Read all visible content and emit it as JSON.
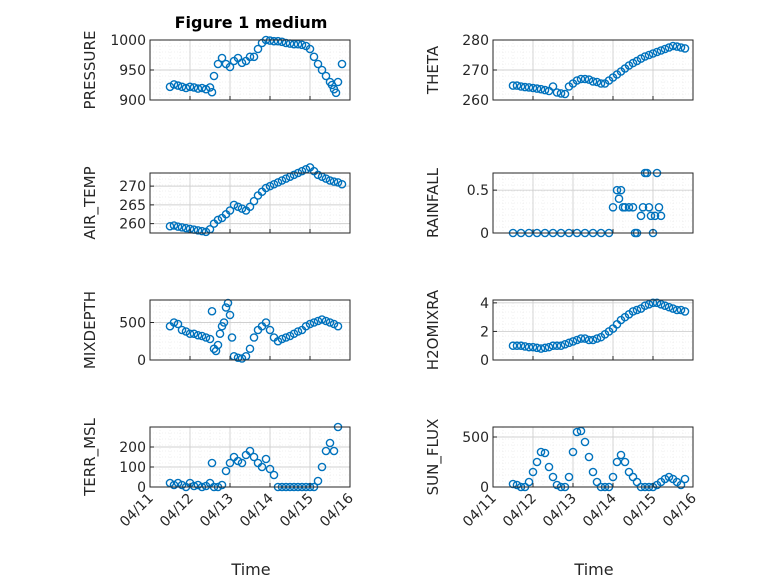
{
  "title": "Figure 1 medium",
  "xlabel": "Time",
  "x_tick_labels": [
    "04/11",
    "04/12",
    "04/13",
    "04/14",
    "04/15",
    "04/16"
  ],
  "marker_color": "#0072BD",
  "chart_data": [
    {
      "type": "scatter",
      "ylabel": "PRESSURE",
      "ylim": [
        900,
        1000
      ],
      "yticks": [
        900,
        950,
        1000
      ],
      "grid": true,
      "minor_grid": true,
      "x": [
        0.5,
        0.6,
        0.7,
        0.8,
        0.9,
        1.0,
        1.1,
        1.2,
        1.3,
        1.4,
        1.5,
        1.55,
        1.6,
        1.7,
        1.8,
        1.9,
        2.0,
        2.1,
        2.2,
        2.3,
        2.4,
        2.5,
        2.6,
        2.7,
        2.8,
        2.9,
        3.0,
        3.1,
        3.2,
        3.3,
        3.4,
        3.5,
        3.6,
        3.7,
        3.8,
        3.9,
        4.0,
        4.1,
        4.2,
        4.3,
        4.4,
        4.5,
        4.55,
        4.6,
        4.65,
        4.7,
        4.8
      ],
      "y": [
        922,
        926,
        924,
        922,
        920,
        922,
        921,
        919,
        920,
        918,
        921,
        913,
        940,
        960,
        970,
        960,
        955,
        965,
        970,
        962,
        965,
        972,
        972,
        985,
        995,
        1000,
        999,
        998,
        998,
        997,
        995,
        994,
        993,
        993,
        992,
        990,
        985,
        972,
        960,
        950,
        940,
        930,
        925,
        918,
        912,
        930,
        960
      ]
    },
    {
      "type": "scatter",
      "ylabel": "THETA",
      "ylim": [
        260,
        280
      ],
      "yticks": [
        260,
        270,
        280
      ],
      "grid": true,
      "minor_grid": true,
      "x": [
        0.5,
        0.6,
        0.7,
        0.8,
        0.9,
        1.0,
        1.1,
        1.2,
        1.3,
        1.4,
        1.5,
        1.6,
        1.7,
        1.8,
        1.9,
        2.0,
        2.1,
        2.2,
        2.3,
        2.4,
        2.5,
        2.6,
        2.7,
        2.8,
        2.9,
        3.0,
        3.1,
        3.2,
        3.3,
        3.4,
        3.5,
        3.6,
        3.7,
        3.8,
        3.9,
        4.0,
        4.1,
        4.2,
        4.3,
        4.4,
        4.5,
        4.6,
        4.7,
        4.8
      ],
      "y": [
        264.8,
        264.8,
        264.5,
        264.3,
        264.2,
        264.0,
        263.8,
        263.6,
        263.3,
        263.0,
        264.5,
        262.5,
        262.2,
        262.0,
        264.5,
        265.5,
        266.5,
        267.0,
        267.0,
        266.8,
        266.2,
        266.0,
        265.5,
        265.5,
        266.5,
        267.5,
        268.5,
        269.5,
        270.5,
        271.5,
        272.3,
        273.0,
        273.8,
        274.5,
        275.0,
        275.5,
        276.0,
        276.5,
        277.0,
        277.5,
        278.0,
        277.8,
        277.5,
        277.2
      ]
    },
    {
      "type": "scatter",
      "ylabel": "AIR_TEMP",
      "ylim": [
        257.5,
        273.5
      ],
      "yticks": [
        260,
        265,
        270
      ],
      "grid": true,
      "minor_grid": true,
      "x": [
        0.5,
        0.6,
        0.7,
        0.8,
        0.9,
        1.0,
        1.1,
        1.2,
        1.3,
        1.4,
        1.5,
        1.6,
        1.7,
        1.8,
        1.9,
        2.0,
        2.1,
        2.2,
        2.3,
        2.4,
        2.5,
        2.6,
        2.7,
        2.8,
        2.9,
        3.0,
        3.1,
        3.2,
        3.3,
        3.4,
        3.5,
        3.6,
        3.7,
        3.8,
        3.9,
        4.0,
        4.1,
        4.2,
        4.3,
        4.4,
        4.5,
        4.6,
        4.7,
        4.8
      ],
      "y": [
        259.3,
        259.5,
        259.2,
        259.0,
        258.8,
        258.6,
        258.4,
        258.2,
        258.0,
        257.8,
        258.5,
        260.0,
        261.0,
        261.5,
        262.5,
        263.5,
        265.0,
        264.5,
        264.0,
        263.5,
        264.5,
        266.0,
        267.5,
        268.5,
        269.5,
        270.0,
        270.5,
        271.0,
        271.5,
        272.0,
        272.5,
        273.0,
        273.5,
        274.0,
        274.5,
        275.0,
        274.0,
        273.0,
        272.5,
        272.0,
        271.5,
        271.2,
        271.0,
        270.5
      ]
    },
    {
      "type": "scatter",
      "ylabel": "RAINFALL",
      "ylim": [
        0,
        0.7
      ],
      "yticks": [
        0,
        0.5
      ],
      "grid": true,
      "minor_grid": true,
      "x": [
        0.5,
        0.7,
        0.9,
        1.1,
        1.3,
        1.5,
        1.7,
        1.9,
        2.1,
        2.3,
        2.5,
        2.7,
        2.9,
        3.0,
        3.1,
        3.15,
        3.2,
        3.25,
        3.3,
        3.4,
        3.5,
        3.55,
        3.6,
        3.7,
        3.75,
        3.8,
        3.85,
        3.9,
        3.95,
        4.0,
        4.05,
        4.1,
        4.15,
        4.2
      ],
      "y": [
        0,
        0,
        0,
        0,
        0,
        0,
        0,
        0,
        0,
        0,
        0,
        0,
        0,
        0.3,
        0.5,
        0.4,
        0.5,
        0.3,
        0.3,
        0.3,
        0.3,
        0,
        0,
        0.2,
        0.3,
        0.7,
        0.7,
        0.3,
        0.2,
        0,
        0.2,
        0.7,
        0.3,
        0.2
      ]
    },
    {
      "type": "scatter",
      "ylabel": "MIXDEPTH",
      "ylim": [
        0,
        800
      ],
      "yticks": [
        0,
        500
      ],
      "grid": true,
      "minor_grid": true,
      "x": [
        0.5,
        0.6,
        0.7,
        0.8,
        0.9,
        1.0,
        1.1,
        1.2,
        1.3,
        1.4,
        1.5,
        1.55,
        1.6,
        1.65,
        1.7,
        1.75,
        1.8,
        1.85,
        1.9,
        1.95,
        2.0,
        2.05,
        2.1,
        2.2,
        2.3,
        2.4,
        2.5,
        2.6,
        2.7,
        2.8,
        2.9,
        3.0,
        3.1,
        3.2,
        3.3,
        3.4,
        3.5,
        3.6,
        3.7,
        3.8,
        3.9,
        4.0,
        4.1,
        4.2,
        4.3,
        4.4,
        4.5,
        4.6,
        4.7
      ],
      "y": [
        450,
        500,
        480,
        400,
        380,
        350,
        350,
        330,
        320,
        300,
        280,
        650,
        150,
        120,
        200,
        350,
        450,
        500,
        700,
        760,
        600,
        300,
        50,
        30,
        20,
        50,
        150,
        300,
        400,
        450,
        500,
        400,
        300,
        250,
        280,
        300,
        320,
        350,
        380,
        400,
        450,
        480,
        500,
        520,
        540,
        520,
        500,
        480,
        450
      ]
    },
    {
      "type": "scatter",
      "ylabel": "H2OMIXRA",
      "ylim": [
        0,
        4.2
      ],
      "yticks": [
        0,
        2,
        4
      ],
      "grid": true,
      "minor_grid": true,
      "x": [
        0.5,
        0.6,
        0.7,
        0.8,
        0.9,
        1.0,
        1.1,
        1.2,
        1.3,
        1.4,
        1.5,
        1.6,
        1.7,
        1.8,
        1.9,
        2.0,
        2.1,
        2.2,
        2.3,
        2.4,
        2.5,
        2.6,
        2.7,
        2.8,
        2.9,
        3.0,
        3.1,
        3.2,
        3.3,
        3.4,
        3.5,
        3.6,
        3.7,
        3.8,
        3.9,
        4.0,
        4.1,
        4.2,
        4.3,
        4.4,
        4.5,
        4.6,
        4.7,
        4.8
      ],
      "y": [
        1.0,
        1.0,
        1.0,
        0.95,
        0.9,
        0.9,
        0.85,
        0.8,
        0.85,
        0.9,
        1.0,
        1.0,
        1.0,
        1.1,
        1.2,
        1.3,
        1.4,
        1.5,
        1.5,
        1.4,
        1.4,
        1.5,
        1.6,
        1.8,
        2.0,
        2.2,
        2.5,
        2.8,
        3.0,
        3.2,
        3.4,
        3.5,
        3.6,
        3.8,
        3.9,
        4.0,
        4.0,
        3.9,
        3.8,
        3.7,
        3.6,
        3.5,
        3.5,
        3.4
      ]
    },
    {
      "type": "scatter",
      "ylabel": "TERR_MSL",
      "ylim": [
        0,
        300
      ],
      "yticks": [
        0,
        100,
        200
      ],
      "grid": true,
      "minor_grid": true,
      "x": [
        0.5,
        0.6,
        0.7,
        0.8,
        0.9,
        1.0,
        1.1,
        1.2,
        1.3,
        1.4,
        1.5,
        1.55,
        1.6,
        1.7,
        1.8,
        1.9,
        2.0,
        2.1,
        2.2,
        2.3,
        2.4,
        2.5,
        2.6,
        2.7,
        2.8,
        2.9,
        3.0,
        3.1,
        3.2,
        3.3,
        3.4,
        3.5,
        3.6,
        3.7,
        3.8,
        3.9,
        4.0,
        4.1,
        4.2,
        4.3,
        4.4,
        4.5,
        4.6,
        4.7
      ],
      "y": [
        20,
        10,
        20,
        10,
        0,
        20,
        5,
        10,
        0,
        5,
        20,
        120,
        0,
        0,
        10,
        80,
        120,
        150,
        130,
        120,
        160,
        180,
        150,
        120,
        100,
        140,
        90,
        60,
        0,
        0,
        0,
        0,
        0,
        0,
        0,
        0,
        0,
        0,
        30,
        100,
        180,
        220,
        180,
        300
      ]
    },
    {
      "type": "scatter",
      "ylabel": "SUN_FLUX",
      "ylim": [
        0,
        600
      ],
      "yticks": [
        0,
        500
      ],
      "grid": true,
      "minor_grid": true,
      "x": [
        0.5,
        0.6,
        0.7,
        0.8,
        0.9,
        1.0,
        1.1,
        1.2,
        1.3,
        1.4,
        1.5,
        1.6,
        1.7,
        1.8,
        1.9,
        2.0,
        2.1,
        2.2,
        2.3,
        2.4,
        2.5,
        2.6,
        2.7,
        2.8,
        2.9,
        3.0,
        3.1,
        3.2,
        3.3,
        3.4,
        3.5,
        3.6,
        3.7,
        3.8,
        3.9,
        4.0,
        4.1,
        4.2,
        4.3,
        4.4,
        4.5,
        4.6,
        4.7,
        4.8
      ],
      "y": [
        30,
        20,
        0,
        0,
        50,
        150,
        250,
        350,
        340,
        200,
        100,
        20,
        0,
        0,
        100,
        350,
        550,
        560,
        450,
        300,
        150,
        50,
        0,
        0,
        0,
        100,
        250,
        320,
        250,
        150,
        100,
        50,
        0,
        0,
        0,
        0,
        20,
        50,
        80,
        100,
        80,
        50,
        20,
        80
      ]
    }
  ]
}
